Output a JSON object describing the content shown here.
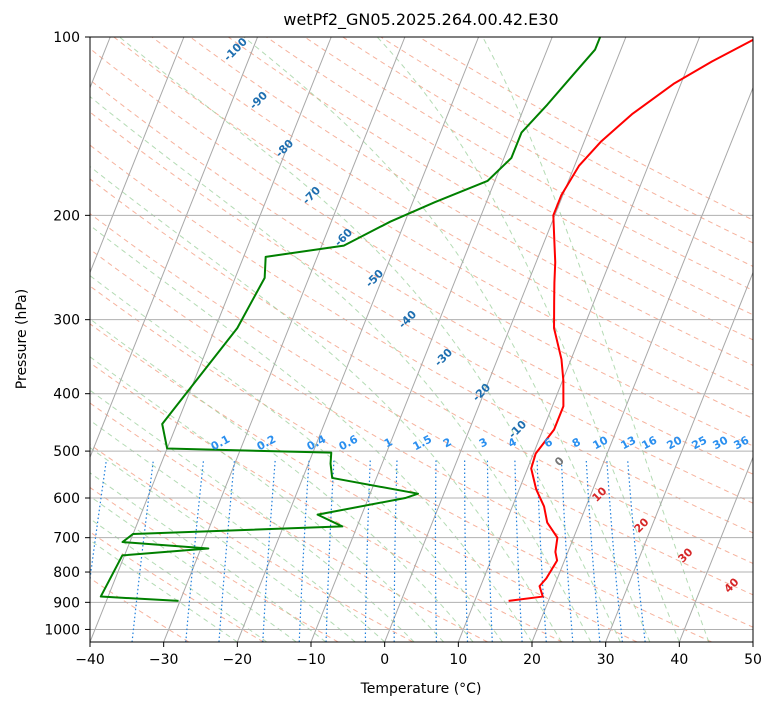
{
  "chart_data": {
    "type": "line",
    "title": "wetPf2_GN05.2025.264.00.42.E30",
    "xlabel": "Temperature (°C)",
    "ylabel": "Pressure (hPa)",
    "x_range": [
      -40,
      50
    ],
    "p_range": [
      1050,
      100
    ],
    "y_scale": "log",
    "grid": true,
    "x_ticks": [
      -40,
      -30,
      -20,
      -10,
      0,
      10,
      20,
      30,
      40,
      50
    ],
    "p_ticks": [
      100,
      200,
      300,
      400,
      500,
      600,
      700,
      800,
      900,
      1000
    ],
    "skew_isotherms": true,
    "mixing_ratio_labels": [
      "0.1",
      "0.2",
      "0.4",
      "0.6",
      "1",
      "1.5",
      "2",
      "3",
      "4",
      "6",
      "8",
      "10",
      "13",
      "16",
      "20",
      "25",
      "30",
      "36"
    ],
    "moist_adiabat_labels": [
      "-100",
      "-90",
      "-80",
      "-70",
      "-60",
      "-50",
      "-40",
      "-30",
      "-20",
      "-10",
      "0",
      "10",
      "20",
      "30",
      "40"
    ],
    "series": [
      {
        "name": "",
        "color": "#ff0000",
        "x": [
          14.6,
          19.0,
          18.0,
          18.5,
          19.0,
          18.3,
          17.8,
          15.6,
          14.3,
          12.3,
          10.5,
          10.3,
          11.5,
          11.5,
          10.1,
          8.7,
          6.0,
          4.6,
          3.6,
          2.6,
          1.4,
          -0.2,
          -0.2,
          0.6,
          2.3,
          5.0,
          9.0,
          13.0,
          18.0
        ],
        "p": [
          895,
          880,
          845,
          820,
          765,
          740,
          700,
          660,
          620,
          580,
          535,
          505,
          460,
          420,
          380,
          350,
          310,
          280,
          260,
          240,
          222,
          200,
          185,
          165,
          150,
          135,
          120,
          110,
          100
        ]
      },
      {
        "name": "",
        "color": "#008000",
        "x": [
          -30.2,
          -41.0,
          -40.3,
          -29.0,
          -41.0,
          -40.0,
          -12.0,
          -16.0,
          -5.0,
          -3.5,
          -16.0,
          -17.0,
          -17.5,
          -40.0,
          -42.0,
          -37.0,
          -36.0,
          -37.0,
          -27.0,
          -22.0,
          -17.0,
          -11.0,
          -9.0,
          -9.0,
          -7.0,
          -5.0,
          -3.5,
          -3.5
        ],
        "p": [
          895,
          880,
          750,
          730,
          712,
          690,
          670,
          640,
          600,
          590,
          555,
          525,
          503,
          495,
          450,
          310,
          255,
          235,
          225,
          205,
          190,
          175,
          160,
          145,
          130,
          115,
          105,
          100
        ]
      }
    ]
  }
}
